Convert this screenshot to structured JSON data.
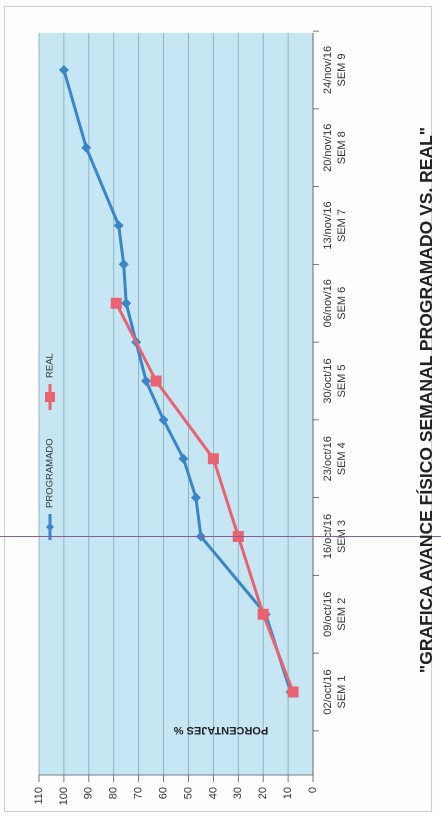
{
  "chart_data": {
    "type": "line",
    "title": "\"GRAFICA AVANCE FÍSICO SEMANAL PROGRAMADO VS. REAL\"",
    "ylabel": "PORCENTAJES %",
    "xlabel": "",
    "categories": [
      "SEM 1 02/oct/16",
      "SEM 2 09/oct/16",
      "SEM 3 16/oct/16",
      "SEM 4 23/oct/16",
      "SEM 5 30/oct/16",
      "SEM 6 06/nov/16",
      "SEM 7 13/nov/16",
      "SEM 8 20/nov/16",
      "SEM 9 24/nov/16"
    ],
    "x_sem": [
      "SEM 1",
      "SEM 2",
      "SEM 3",
      "SEM 4",
      "SEM 5",
      "SEM 6",
      "SEM 7",
      "SEM 8",
      "SEM 9"
    ],
    "x_dates": [
      "02/oct/16",
      "09/oct/16",
      "16/oct/16",
      "23/oct/16",
      "30/oct/16",
      "06/nov/16",
      "13/nov/16",
      "20/nov/16",
      "24/nov/16"
    ],
    "yticks": [
      0,
      10,
      20,
      30,
      40,
      50,
      60,
      70,
      80,
      90,
      100,
      110
    ],
    "ylim": [
      0,
      110
    ],
    "grid": true,
    "legend_position": "left",
    "series": [
      {
        "name": "PROGRAMADO",
        "color": "#3a86c8",
        "marker": "diamond",
        "x": [
          1,
          2,
          3,
          3.5,
          4,
          4.5,
          5,
          5.5,
          6,
          6.5,
          7,
          8,
          9
        ],
        "values": [
          9,
          19,
          45,
          47,
          52,
          60,
          67,
          71,
          75,
          76,
          78,
          91,
          100
        ]
      },
      {
        "name": "REAL",
        "color": "#e8636f",
        "marker": "square",
        "x": [
          1,
          2,
          3,
          4,
          5,
          6
        ],
        "values": [
          8,
          20,
          30,
          40,
          63,
          79
        ]
      }
    ],
    "colors": {
      "plot_bg": "#c6e6f4",
      "grid": "#7fa8bc",
      "cursor_line": "#8a5a9a"
    }
  }
}
